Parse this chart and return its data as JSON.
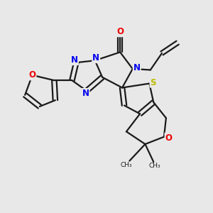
{
  "background_color": "#e8e8e8",
  "bond_color": "#1a1a1a",
  "atom_colors": {
    "N": "#0000ee",
    "O": "#ee0000",
    "S": "#bbbb00",
    "C": "#1a1a1a"
  },
  "figsize": [
    3.0,
    3.0
  ],
  "dpi": 100,
  "lw": 1.6,
  "fs": 8.5
}
